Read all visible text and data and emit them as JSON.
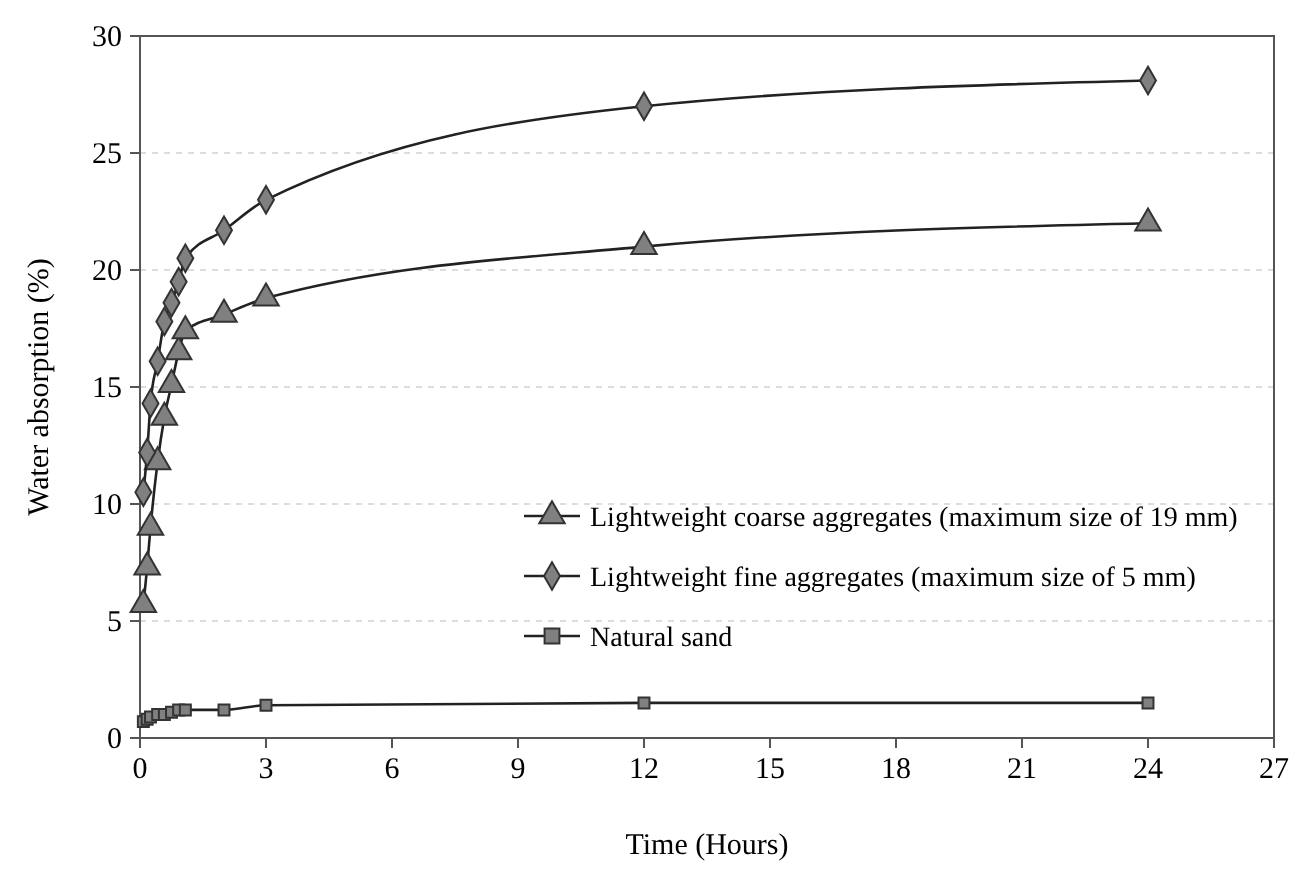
{
  "chart_data": {
    "type": "line",
    "xlabel": "Time (Hours)",
    "ylabel": "Water absorption (%)",
    "x": [
      0.08,
      0.17,
      0.25,
      0.42,
      0.58,
      0.75,
      0.92,
      1.08,
      2,
      3,
      12,
      24
    ],
    "series": [
      {
        "name": "Lightweight coarse aggregates (maximum size of 19 mm)",
        "color": "#808080",
        "marker": "triangle",
        "values": [
          5.7,
          7.3,
          9,
          11.8,
          13.7,
          15.1,
          16.5,
          17.4,
          18.1,
          18.8,
          21,
          22
        ]
      },
      {
        "name": "Lightweight fine aggregates (maximum size of 5 mm)",
        "color": "#808080",
        "marker": "diamond",
        "values": [
          10.5,
          12.2,
          14.3,
          16.1,
          17.8,
          18.6,
          19.5,
          20.5,
          21.7,
          23,
          27,
          28.1
        ]
      },
      {
        "name": "Natural sand",
        "color": "#808080",
        "marker": "square",
        "values": [
          0.7,
          0.8,
          0.9,
          1,
          1,
          1.1,
          1.2,
          1.2,
          1.2,
          1.4,
          1.5,
          1.5
        ]
      }
    ],
    "xlim": [
      0,
      27
    ],
    "xticks": [
      0,
      3,
      6,
      9,
      12,
      15,
      18,
      21,
      24,
      27
    ],
    "ylim": [
      0,
      30
    ],
    "yticks": [
      0,
      5,
      10,
      15,
      20,
      25,
      30
    ],
    "grid": "y",
    "legend": "right",
    "line_style": "solid"
  }
}
